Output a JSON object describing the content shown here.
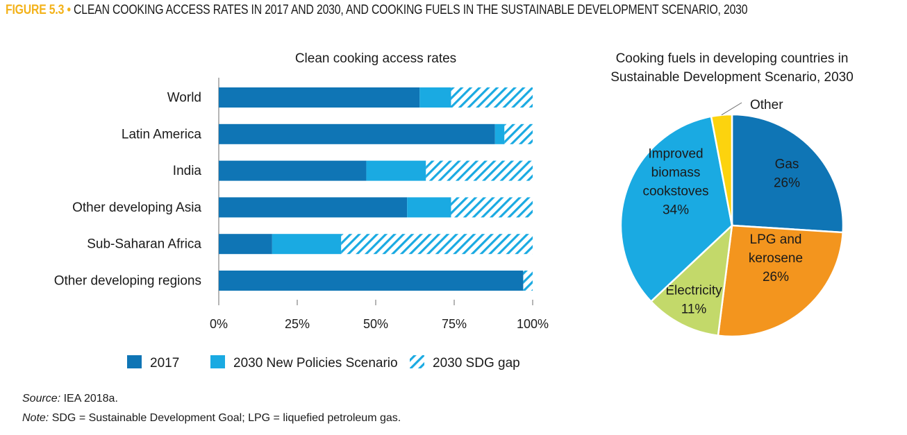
{
  "figure": {
    "number": "FIGURE 5.3",
    "bullet": "•",
    "title": "CLEAN COOKING ACCESS RATES IN 2017 AND 2030, AND COOKING FUELS IN THE SUSTAINABLE DEVELOPMENT SCENARIO, 2030"
  },
  "colors": {
    "dark_blue": "#0f75b5",
    "light_blue": "#1aaae2",
    "hatch": "#1aaae2",
    "gas": "#0f75b5",
    "lpg": "#f3951e",
    "electricity": "#c3d96a",
    "biomass": "#1aaae2",
    "other": "#fcd30e",
    "accent": "#f3b21a"
  },
  "chart_data": [
    {
      "type": "bar",
      "orientation": "horizontal",
      "stacked": true,
      "title": "Clean cooking access rates",
      "categories": [
        "World",
        "Latin America",
        "India",
        "Other developing Asia",
        "Sub-Saharan Africa",
        "Other developing regions"
      ],
      "series": [
        {
          "name": "2017",
          "values": [
            64,
            88,
            47,
            60,
            17,
            97
          ]
        },
        {
          "name": "2030 New Policies Scenario",
          "values": [
            10,
            3,
            19,
            14,
            22,
            0
          ]
        },
        {
          "name": "2030 SDG gap",
          "values": [
            26,
            9,
            34,
            26,
            61,
            3
          ]
        }
      ],
      "xlim": [
        0,
        100
      ],
      "ticks": [
        "0%",
        "25%",
        "50%",
        "75%",
        "100%"
      ],
      "tick_values": [
        0,
        25,
        50,
        75,
        100
      ],
      "legend_position": "bottom"
    },
    {
      "type": "pie",
      "title_lines": [
        "Cooking fuels in developing countries in",
        "Sustainable Development Scenario, 2030"
      ],
      "slices": [
        {
          "label_lines": [
            "Gas"
          ],
          "pct_text": "26%",
          "value": 26,
          "color": "#0f75b5"
        },
        {
          "label_lines": [
            "LPG and",
            "kerosene"
          ],
          "pct_text": "26%",
          "value": 26,
          "color": "#f3951e"
        },
        {
          "label_lines": [
            "Electricity"
          ],
          "pct_text": "11%",
          "value": 11,
          "color": "#c3d96a"
        },
        {
          "label_lines": [
            "Improved",
            "biomass",
            "cookstoves"
          ],
          "pct_text": "34%",
          "value": 34,
          "color": "#1aaae2"
        },
        {
          "label_lines": [
            "Other"
          ],
          "pct_text": "",
          "value": 3,
          "color": "#fcd30e"
        }
      ]
    }
  ],
  "footer": {
    "source_label": "Source:",
    "source_text": "IEA 2018a.",
    "note_label": "Note:",
    "note_text": "SDG = Sustainable Development Goal; LPG = liquefied petroleum gas."
  }
}
